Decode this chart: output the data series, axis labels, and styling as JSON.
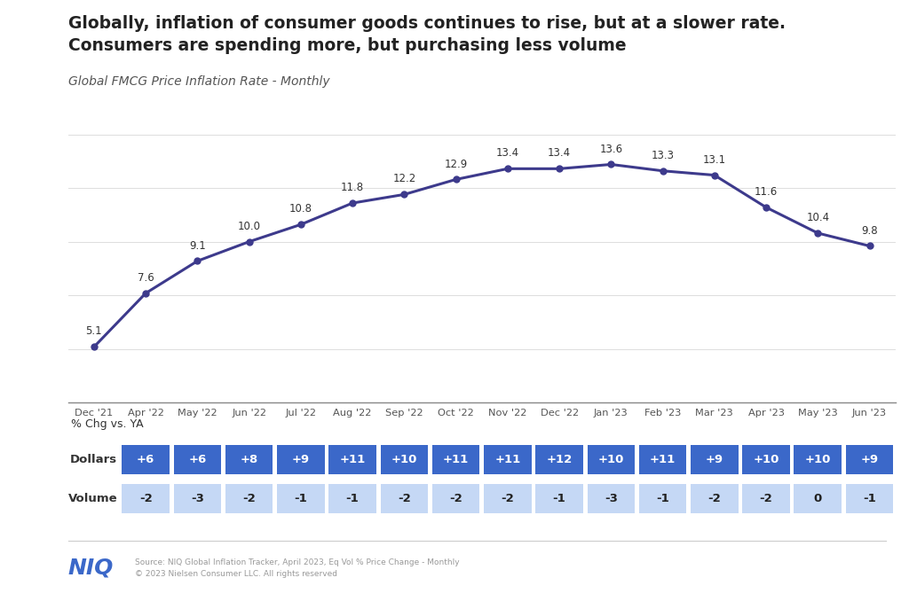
{
  "title_line1": "Globally, inflation of consumer goods continues to rise, but at a slower rate.",
  "title_line2": "Consumers are spending more, but purchasing less volume",
  "subtitle": "Global FMCG Price Inflation Rate - Monthly",
  "months": [
    "Dec '21",
    "Apr '22",
    "May '22",
    "Jun '22",
    "Jul '22",
    "Aug '22",
    "Sep '22",
    "Oct '22",
    "Nov '22",
    "Dec '22",
    "Jan '23",
    "Feb '23",
    "Mar '23",
    "Apr '23",
    "May '23",
    "Jun '23"
  ],
  "values": [
    5.1,
    7.6,
    9.1,
    10.0,
    10.8,
    11.8,
    12.2,
    12.9,
    13.4,
    13.4,
    13.6,
    13.3,
    13.1,
    11.6,
    10.4,
    9.8
  ],
  "line_color": "#3D3A8C",
  "dollars": [
    "+6",
    "+6",
    "+8",
    "+9",
    "+11",
    "+10",
    "+11",
    "+11",
    "+12",
    "+10",
    "+11",
    "+9",
    "+10",
    "+10",
    "+9"
  ],
  "volume": [
    "-2",
    "-3",
    "-2",
    "-1",
    "-1",
    "-2",
    "-2",
    "-2",
    "-1",
    "-3",
    "-1",
    "-2",
    "-2",
    "0",
    "-1"
  ],
  "dollars_bg": "#3B68C9",
  "dollars_text": "#FFFFFF",
  "volume_bg": "#C5D8F5",
  "volume_text": "#222222",
  "background_color": "#FFFFFF",
  "source_text": "Source: NIQ Global Inflation Tracker, April 2023, Eq Vol % Price Change - Monthly\n© 2023 Nielsen Consumer LLC. All rights reserved",
  "niq_color": "#3B68C9",
  "pct_chg_label": "% Chg vs. YA",
  "dollars_label": "Dollars",
  "volume_label": "Volume",
  "grid_color": "#DDDDDD",
  "axis_label_color": "#555555",
  "title_color": "#222222",
  "subtitle_color": "#555555"
}
